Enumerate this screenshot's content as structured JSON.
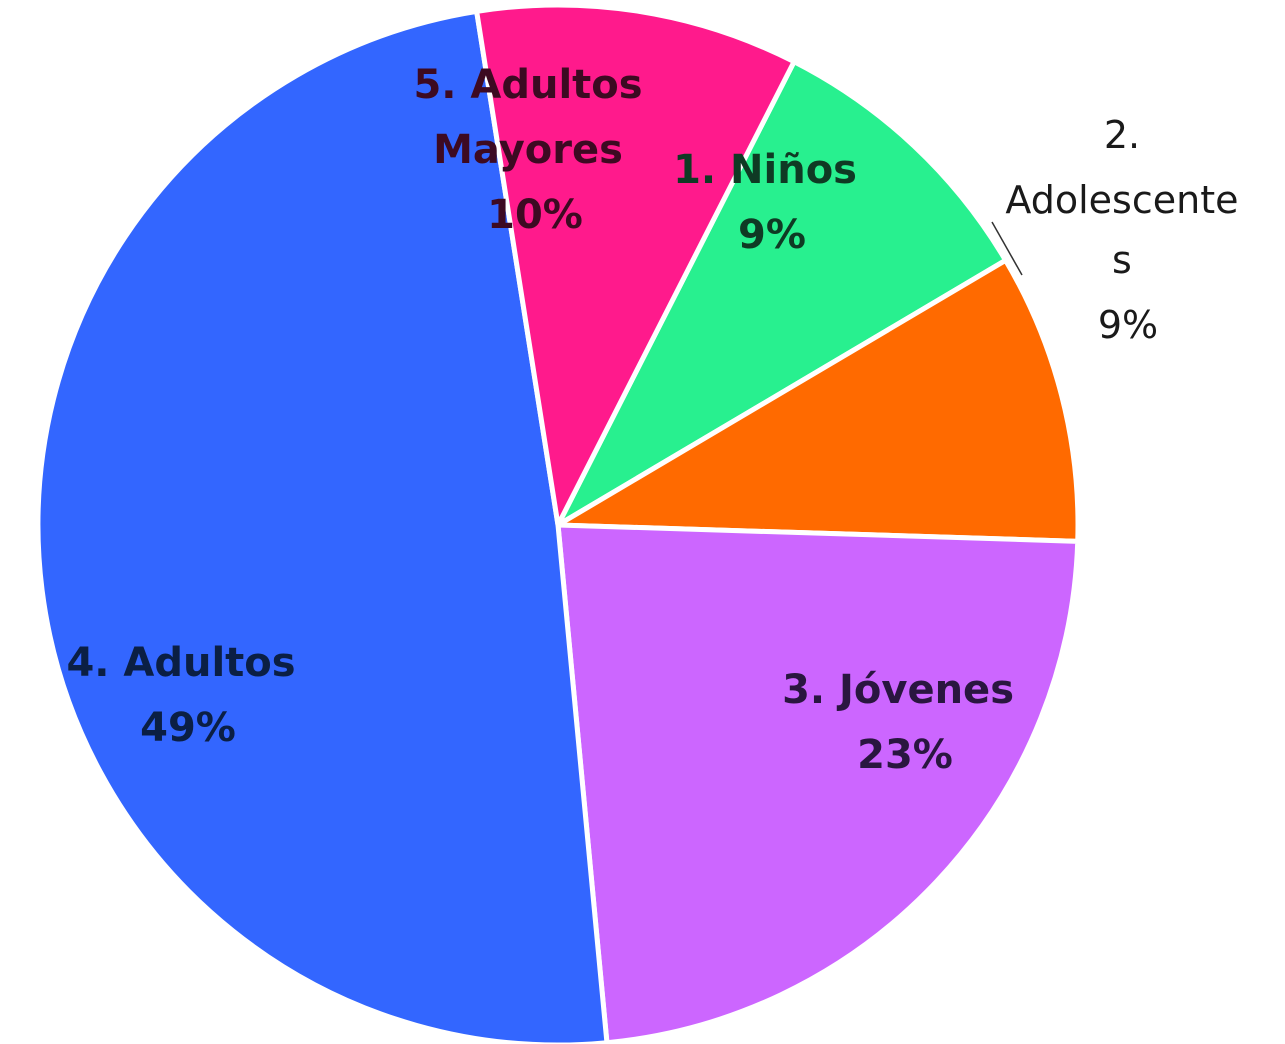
{
  "chart_data": {
    "type": "pie",
    "title": "",
    "slices": [
      {
        "label": "1. Niños",
        "value": 9,
        "value_label": "9%",
        "color": "#28f08f",
        "text_color": "#0f3a24"
      },
      {
        "label": "2. Adolescentes",
        "label_lines": [
          "2.",
          "Adolescente",
          "s"
        ],
        "value": 9,
        "value_label": "9%",
        "color": "#ff6a00",
        "text_color": "#1a1a1a"
      },
      {
        "label": "3. Jóvenes",
        "value": 23,
        "value_label": "23%",
        "color": "#cc66ff",
        "text_color": "#2a1640"
      },
      {
        "label": "4. Adultos",
        "value": 49,
        "value_label": "49%",
        "color": "#3366ff",
        "text_color": "#0b1f44"
      },
      {
        "label": "5. Adultos Mayores",
        "label_lines": [
          "5. Adultos",
          "Mayores"
        ],
        "value": 10,
        "value_label": "10%",
        "color": "#ff1a8c",
        "text_color": "#3d0a22"
      }
    ],
    "legend": "none"
  }
}
